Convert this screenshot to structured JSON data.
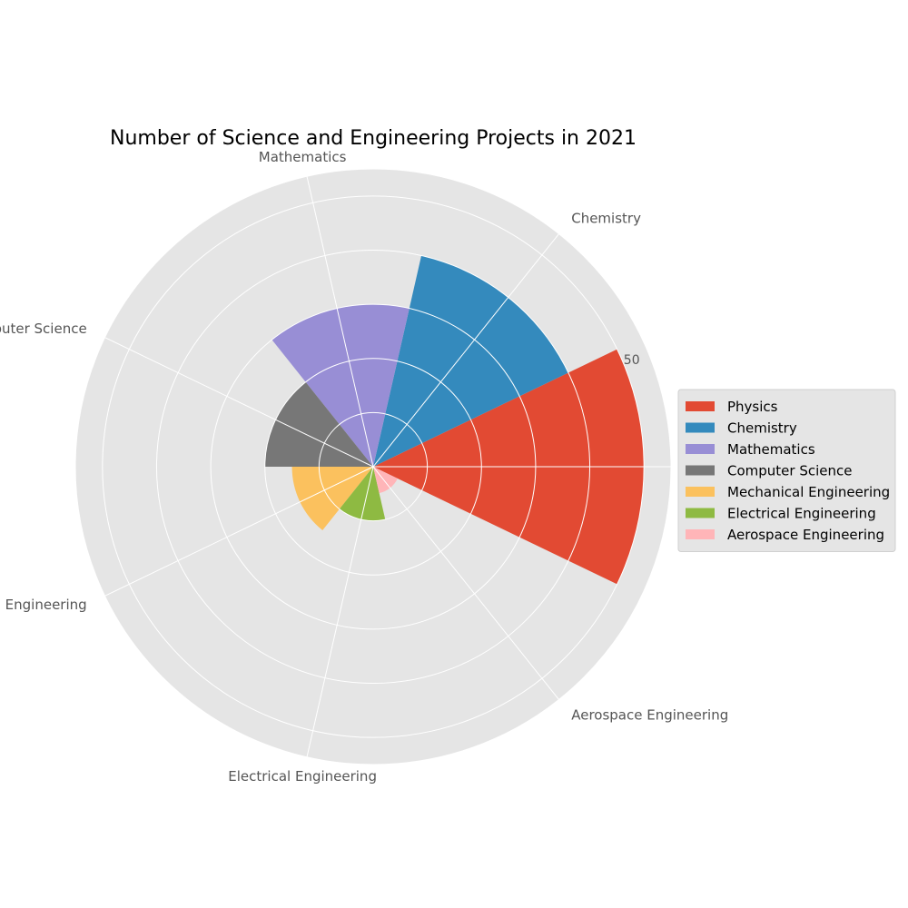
{
  "chart_data": {
    "type": "polar-bar",
    "title": "Number of Science and Engineering Projects in 2021",
    "categories": [
      "Physics",
      "Chemistry",
      "Mathematics",
      "Computer Science",
      "Mechanical Engineering",
      "Electrical Engineering",
      "Aerospace Engineering"
    ],
    "values": [
      50,
      40,
      30,
      20,
      15,
      10,
      5
    ],
    "colors": [
      "#E24A33",
      "#348ABD",
      "#988ED5",
      "#777777",
      "#FBC15E",
      "#8EBA42",
      "#FFB5B8"
    ],
    "rmax": 55,
    "gridlines": [
      10,
      20,
      30,
      40,
      50
    ],
    "radial_tick_label": "50",
    "grid": true,
    "legend_position": "right",
    "background": "#E5E5E5"
  }
}
